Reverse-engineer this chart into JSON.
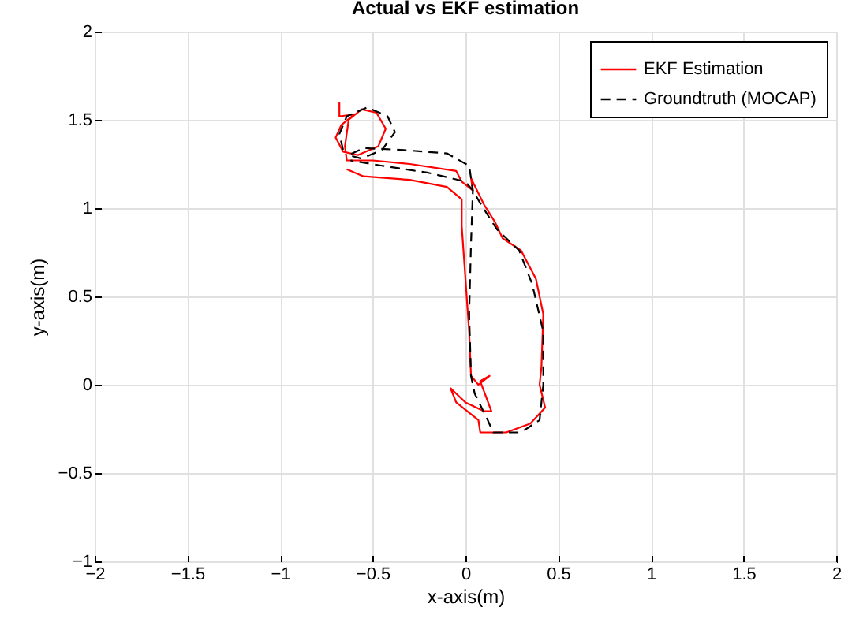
{
  "chart_data": {
    "type": "line",
    "title": "Actual vs EKF estimation",
    "xlabel": "x-axis(m)",
    "ylabel": "y-axis(m)",
    "xlim": [
      -2,
      2
    ],
    "xticks": [
      -2,
      -1.5,
      -1,
      -0.5,
      0,
      0.5,
      1,
      1.5,
      2
    ],
    "ylim": [
      -1,
      2
    ],
    "yticks": [
      -1,
      -0.5,
      0,
      0.5,
      1,
      1.5,
      2
    ],
    "grid": true,
    "legend": "top right",
    "marker": "none",
    "series": [
      {
        "name": "EKF Estimation",
        "color": "#ff0000",
        "line_style": "solid",
        "x": [
          -0.68,
          -0.68,
          -0.6,
          -0.67,
          -0.7,
          -0.66,
          -0.58,
          -0.47,
          -0.43,
          -0.48,
          -0.56,
          -0.63,
          -0.65,
          -0.64,
          -0.5,
          -0.3,
          -0.05,
          -0.02,
          0.04,
          0.03,
          0.1,
          0.16,
          0.2,
          0.3,
          0.38,
          0.42,
          0.41,
          0.4,
          0.43,
          0.35,
          0.22,
          0.08,
          0.07,
          -0.05,
          -0.08,
          -0.05,
          0,
          0.1,
          0.14,
          0.08,
          0.13,
          0.07,
          0.03,
          0.02,
          0,
          -0.02,
          -0.02,
          -0.1,
          -0.3,
          -0.55,
          -0.64
        ],
        "values": [
          1.6,
          1.52,
          1.53,
          1.47,
          1.4,
          1.32,
          1.3,
          1.35,
          1.45,
          1.54,
          1.56,
          1.5,
          1.35,
          1.27,
          1.27,
          1.25,
          1.21,
          1.15,
          1.1,
          1.17,
          1.02,
          0.92,
          0.83,
          0.76,
          0.6,
          0.4,
          0.1,
          0,
          -0.13,
          -0.22,
          -0.27,
          -0.27,
          -0.2,
          -0.1,
          -0.02,
          -0.05,
          -0.1,
          -0.15,
          -0.15,
          0.02,
          0.05,
          0,
          0.05,
          0.3,
          0.6,
          0.9,
          1.05,
          1.12,
          1.16,
          1.18,
          1.22
        ]
      },
      {
        "name": "Groundtruth (MOCAP)",
        "color": "#000000",
        "line_style": "dashed",
        "x": [
          -0.66,
          -0.68,
          -0.64,
          -0.53,
          -0.42,
          -0.38,
          -0.45,
          -0.56,
          -0.63,
          -0.55,
          -0.35,
          -0.1,
          0.02,
          0.04,
          0.03,
          0.02,
          0.03,
          0.05,
          0.12,
          0.15,
          0.3,
          0.4,
          0.42,
          0.42,
          0.36,
          0.29,
          0.17,
          0.09,
          0.04,
          0,
          -0.2,
          -0.45,
          -0.62
        ],
        "values": [
          1.33,
          1.42,
          1.52,
          1.57,
          1.52,
          1.43,
          1.33,
          1.28,
          1.3,
          1.34,
          1.33,
          1.31,
          1.24,
          1.1,
          0.8,
          0.4,
          0.05,
          -0.05,
          -0.2,
          -0.27,
          -0.27,
          -0.2,
          0,
          0.3,
          0.57,
          0.76,
          0.88,
          1.01,
          1.1,
          1.15,
          1.2,
          1.24,
          1.27
        ]
      }
    ]
  }
}
